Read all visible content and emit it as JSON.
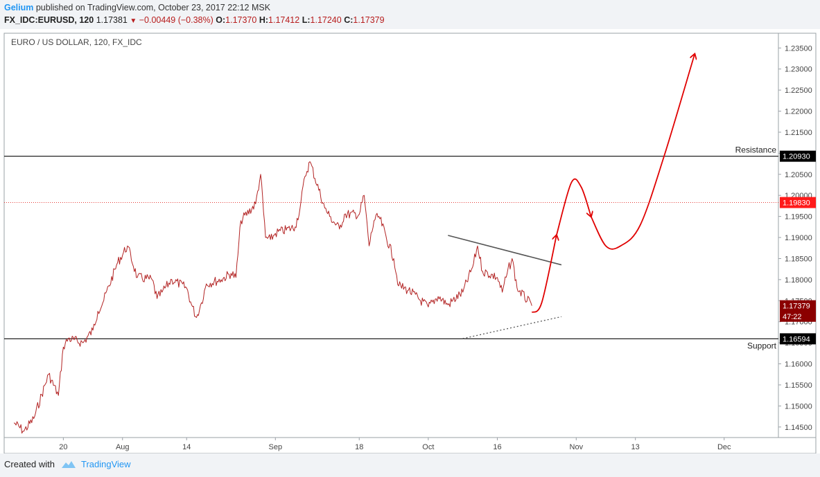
{
  "header": {
    "author": "Gelium",
    "published": "published on TradingView.com, October 23, 2017 22:12 MSK",
    "symbol": "FX_IDC:EURUSD, 120",
    "last": "1.17381",
    "change": "−0.00449 (−0.38%)",
    "o_label": "O:",
    "o": "1.17370",
    "h_label": "H:",
    "h": "1.17412",
    "l_label": "L:",
    "l": "1.17240",
    "c_label": "C:",
    "c": "1.17379"
  },
  "footer": {
    "created_with": "Created with",
    "brand": "TradingView"
  },
  "chart_data": {
    "type": "line",
    "title": "EURO / US DOLLAR, 120, FX_IDC",
    "x_tick_labels": [
      "20",
      "Aug",
      "14",
      "Sep",
      "18",
      "Oct",
      "16",
      "Nov",
      "13",
      "Dec"
    ],
    "y_tick_labels": [
      "1.23500",
      "1.23000",
      "1.22500",
      "1.22000",
      "1.21500",
      "1.21000",
      "1.20500",
      "1.20000",
      "1.19500",
      "1.19000",
      "1.18500",
      "1.18000",
      "1.17500",
      "1.17000",
      "1.16500",
      "1.16000",
      "1.15500",
      "1.15000",
      "1.14500"
    ],
    "ylim": [
      1.1425,
      1.2385
    ],
    "series": [
      {
        "color": "#b22222",
        "x": [
          "2017-07-10",
          "2017-07-12",
          "2017-07-14",
          "2017-07-17",
          "2017-07-19",
          "2017-07-20",
          "2017-07-21",
          "2017-07-24",
          "2017-07-26",
          "2017-07-27",
          "2017-07-28",
          "2017-07-31",
          "2017-08-02",
          "2017-08-04",
          "2017-08-07",
          "2017-08-08",
          "2017-08-09",
          "2017-08-11",
          "2017-08-14",
          "2017-08-15",
          "2017-08-16",
          "2017-08-17",
          "2017-08-18",
          "2017-08-21",
          "2017-08-23",
          "2017-08-24",
          "2017-08-25",
          "2017-08-28",
          "2017-08-29",
          "2017-08-30",
          "2017-08-31",
          "2017-09-01",
          "2017-09-05",
          "2017-09-06",
          "2017-09-07",
          "2017-09-08",
          "2017-09-11",
          "2017-09-12",
          "2017-09-14",
          "2017-09-15",
          "2017-09-18",
          "2017-09-19",
          "2017-09-20",
          "2017-09-21",
          "2017-09-22",
          "2017-09-25",
          "2017-09-26",
          "2017-09-28",
          "2017-10-02",
          "2017-10-04",
          "2017-10-06",
          "2017-10-09",
          "2017-10-11",
          "2017-10-12",
          "2017-10-13",
          "2017-10-16",
          "2017-10-17",
          "2017-10-18",
          "2017-10-19",
          "2017-10-20",
          "2017-10-23"
        ],
        "values": [
          1.146,
          1.144,
          1.147,
          1.1575,
          1.1525,
          1.164,
          1.166,
          1.165,
          1.168,
          1.1725,
          1.1745,
          1.184,
          1.188,
          1.1805,
          1.18,
          1.1755,
          1.177,
          1.18,
          1.178,
          1.174,
          1.171,
          1.1745,
          1.179,
          1.18,
          1.1815,
          1.1805,
          1.194,
          1.198,
          1.205,
          1.19,
          1.1895,
          1.191,
          1.1925,
          1.197,
          1.2045,
          1.208,
          1.197,
          1.195,
          1.192,
          1.1955,
          1.1955,
          1.2,
          1.188,
          1.194,
          1.195,
          1.185,
          1.1785,
          1.1775,
          1.1735,
          1.176,
          1.174,
          1.177,
          1.183,
          1.188,
          1.182,
          1.1805,
          1.177,
          1.1815,
          1.185,
          1.178,
          1.1738
        ]
      }
    ],
    "price_labels": [
      {
        "text": "1.20930",
        "value": 1.2093,
        "bg": "#000000"
      },
      {
        "text": "1.19830",
        "value": 1.1983,
        "bg": "#ff1a1a"
      },
      {
        "text": "1.17379",
        "value": 1.17379,
        "bg": "#8b0000"
      },
      {
        "text": "47:22",
        "value": 1.1713,
        "bg": "#8b0000"
      },
      {
        "text": "1.16594",
        "value": 1.16594,
        "bg": "#000000"
      }
    ],
    "annotations": {
      "resistance": {
        "label": "Resistance",
        "value": 1.2093
      },
      "support": {
        "label": "Support",
        "value": 1.16594
      },
      "dotted_level": 1.1983,
      "trendline_upper": [
        [
          "2017-10-06",
          1.1905
        ],
        [
          "2017-10-29",
          1.1835
        ]
      ],
      "trendline_lower": [
        [
          "2017-10-09",
          1.166
        ],
        [
          "2017-10-29",
          1.1712
        ]
      ],
      "forecast_path": [
        [
          "2017-10-23",
          1.1722
        ],
        [
          "2017-10-25",
          1.1745
        ],
        [
          "2017-10-28",
          1.1905
        ],
        [
          "2017-10-31",
          1.203
        ],
        [
          "2017-11-02",
          1.202
        ],
        [
          "2017-11-04",
          1.195
        ],
        [
          "2017-11-07",
          1.188
        ],
        [
          "2017-11-10",
          1.188
        ],
        [
          "2017-11-14",
          1.193
        ],
        [
          "2017-11-19",
          1.21
        ],
        [
          "2017-11-25",
          1.2335
        ]
      ]
    }
  }
}
